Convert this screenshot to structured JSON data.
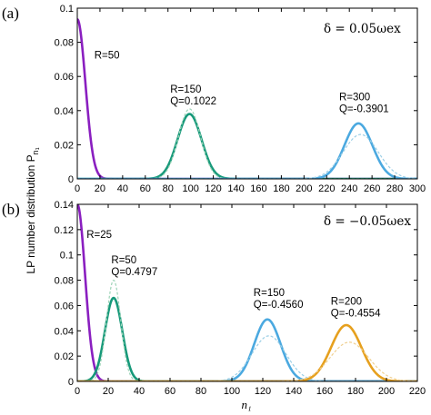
{
  "figure": {
    "y_axis_label": "LP number distribution P",
    "y_axis_label_subscript": "n₁",
    "x_axis_label": "n₁"
  },
  "chart_data": [
    {
      "panel_label": "(a)",
      "type": "line",
      "annotation": "δ = 0.05ωex",
      "xlim": [
        0,
        300
      ],
      "ylim": [
        0,
        0.1
      ],
      "xticks": [
        0,
        20,
        40,
        60,
        80,
        100,
        120,
        140,
        160,
        180,
        200,
        220,
        240,
        260,
        280,
        300
      ],
      "yticks": [
        0,
        0.02,
        0.04,
        0.06,
        0.08,
        0.1
      ],
      "ytick_labels": [
        "0",
        "0.02",
        "0.04",
        "0.06",
        "0.08",
        "0.1"
      ],
      "grid": false,
      "series": [
        {
          "mean": 0,
          "sd": 7.1,
          "peak": 0.0935,
          "color": "#8a1fc0",
          "dashed": false
        },
        {
          "mean": 99,
          "sd": 10.6,
          "peak": 0.038,
          "color": "#17997a",
          "dashed": false
        },
        {
          "mean": 99,
          "sd": 9.7,
          "peak": 0.041,
          "color": "#9ed4b8",
          "dashed": true
        },
        {
          "mean": 248,
          "sd": 12.3,
          "peak": 0.0325,
          "color": "#4ba9e0",
          "dashed": false
        },
        {
          "mean": 250,
          "sd": 15.5,
          "peak": 0.026,
          "color": "#9ccfe6",
          "dashed": true
        }
      ],
      "labels": [
        {
          "lines": [
            "R=50"
          ],
          "x": 15,
          "y": 0.0705
        },
        {
          "lines": [
            "R=150",
            "Q=0.1022"
          ],
          "x": 82,
          "y": 0.0505
        },
        {
          "lines": [
            "R=300",
            "Q=-0.3901"
          ],
          "x": 231,
          "y": 0.046
        }
      ]
    },
    {
      "panel_label": "(b)",
      "type": "line",
      "annotation": "δ = −0.05ωex",
      "xlim": [
        0,
        220
      ],
      "ylim": [
        0,
        0.14
      ],
      "xticks": [
        0,
        20,
        40,
        60,
        80,
        100,
        120,
        140,
        160,
        180,
        200,
        220
      ],
      "yticks": [
        0,
        0.02,
        0.04,
        0.06,
        0.08,
        0.1,
        0.12,
        0.14
      ],
      "ytick_labels": [
        "0",
        "0.02",
        "0.04",
        "0.06",
        "0.08",
        "0.1",
        "0.12",
        "0.14"
      ],
      "grid": false,
      "series": [
        {
          "mean": 0,
          "sd": 5.0,
          "peak": 0.14,
          "color": "#8a1fc0",
          "dashed": false
        },
        {
          "mean": 23.5,
          "sd": 5.6,
          "peak": 0.066,
          "color": "#17997a",
          "dashed": false
        },
        {
          "mean": 23.5,
          "sd": 4.6,
          "peak": 0.08,
          "color": "#9ed4b8",
          "dashed": true
        },
        {
          "mean": 123,
          "sd": 8.5,
          "peak": 0.049,
          "color": "#4ba9e0",
          "dashed": false
        },
        {
          "mean": 124,
          "sd": 11.0,
          "peak": 0.036,
          "color": "#9ccfe6",
          "dashed": true
        },
        {
          "mean": 174,
          "sd": 9.8,
          "peak": 0.0445,
          "color": "#e6a01e",
          "dashed": false
        },
        {
          "mean": 176,
          "sd": 12.5,
          "peak": 0.031,
          "color": "#f0d090",
          "dashed": true
        }
      ],
      "labels": [
        {
          "lines": [
            "R=25"
          ],
          "x": 6,
          "y": 0.1135
        },
        {
          "lines": [
            "R=50",
            "Q=0.4797"
          ],
          "x": 22,
          "y": 0.0935
        },
        {
          "lines": [
            "R=150",
            "Q=-0.4560"
          ],
          "x": 114,
          "y": 0.0675
        },
        {
          "lines": [
            "R=200",
            "Q=-0.4554"
          ],
          "x": 164,
          "y": 0.0605
        }
      ]
    }
  ]
}
